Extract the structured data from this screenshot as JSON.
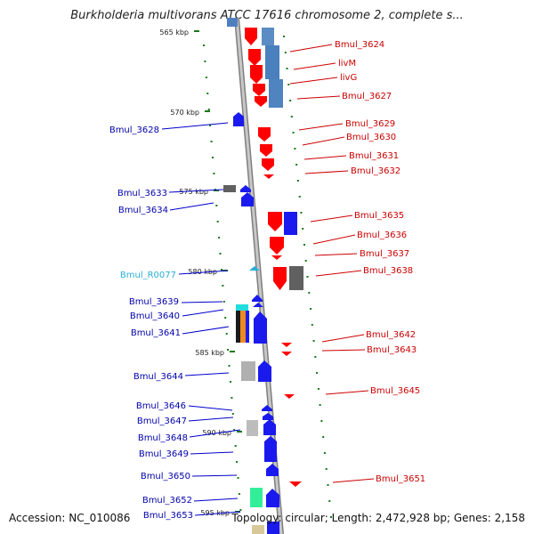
{
  "title": "Burkholderia multivorans ATCC 17616 chromosome 2, complete s...",
  "footer": {
    "accession": "Accession: NC_010086",
    "topology": "Topology: circular; Length: 2,472,928 bp; Genes: 2,158"
  },
  "colors": {
    "backbone": "#9a9a9a",
    "forward_gene": "#ff0000",
    "reverse_gene": "#0000ff",
    "left_label": "#0000aa",
    "right_label": "#cc0000",
    "rna_label": "#2aaed6",
    "tick": "#1a7a1a"
  },
  "kbp_markers": [
    {
      "label": "565 kbp"
    },
    {
      "label": "570 kbp"
    },
    {
      "label": "575 kbp"
    },
    {
      "label": "580 kbp"
    },
    {
      "label": "585 kbp"
    },
    {
      "label": "590 kbp"
    },
    {
      "label": "595 kbp"
    }
  ],
  "left_genes": [
    "Bmul_3628",
    "Bmul_3633",
    "Bmul_3634",
    "Bmul_R0077",
    "Bmul_3639",
    "Bmul_3640",
    "Bmul_3641",
    "Bmul_3644",
    "Bmul_3646",
    "Bmul_3647",
    "Bmul_3648",
    "Bmul_3649",
    "Bmul_3650",
    "Bmul_3652",
    "Bmul_3653"
  ],
  "right_genes": [
    "Bmul_3624",
    "livM",
    "livG",
    "Bmul_3627",
    "Bmul_3629",
    "Bmul_3630",
    "Bmul_3631",
    "Bmul_3632",
    "Bmul_3635",
    "Bmul_3636",
    "Bmul_3637",
    "Bmul_3638",
    "Bmul_3642",
    "Bmul_3643",
    "Bmul_3645",
    "Bmul_3651"
  ]
}
